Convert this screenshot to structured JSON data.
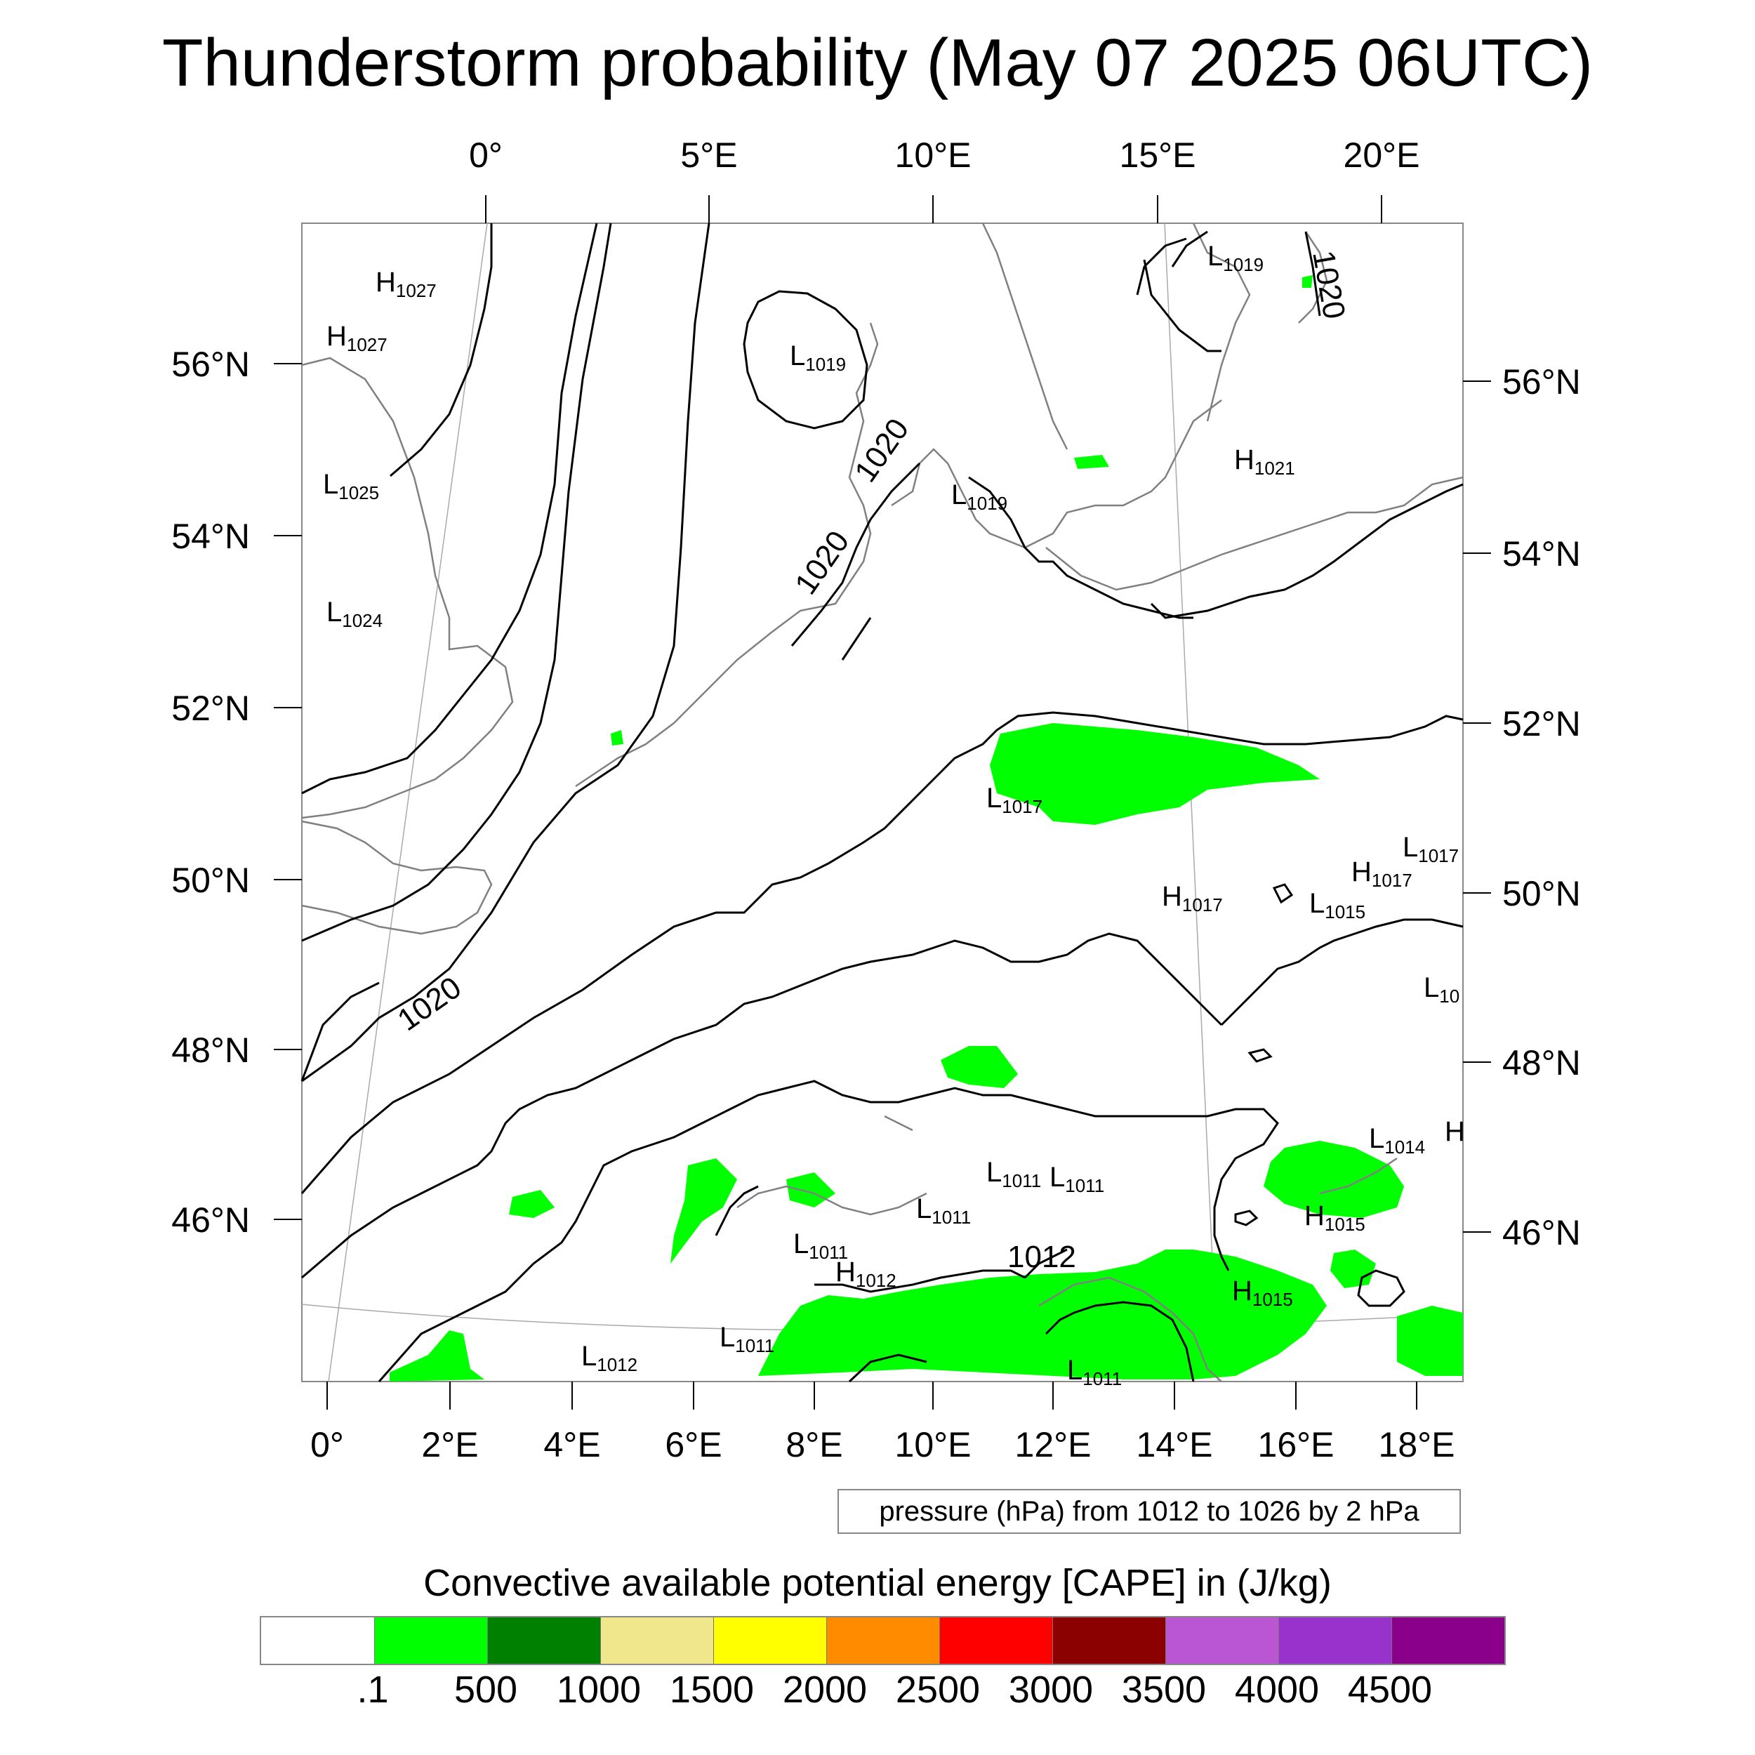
{
  "title": "Thunderstorm probability (May 07 2025 06UTC)",
  "top_lon_labels": [
    "0°",
    "5°E",
    "10°E",
    "15°E",
    "20°E"
  ],
  "bottom_lon_labels": [
    "0°",
    "2°E",
    "4°E",
    "6°E",
    "8°E",
    "10°E",
    "12°E",
    "14°E",
    "16°E",
    "18°E"
  ],
  "left_lat_labels": [
    "56°N",
    "54°N",
    "52°N",
    "50°N",
    "48°N",
    "46°N"
  ],
  "right_lat_labels": [
    "56°N",
    "54°N",
    "52°N",
    "50°N",
    "48°N",
    "46°N"
  ],
  "contour_labels": [
    "1020",
    "1020",
    "1020",
    "1020",
    "1012"
  ],
  "pressure_centers": [
    {
      "type": "H",
      "value": "1027"
    },
    {
      "type": "H",
      "value": "1027"
    },
    {
      "type": "L",
      "value": "1025"
    },
    {
      "type": "L",
      "value": "1024"
    },
    {
      "type": "L",
      "value": "1019"
    },
    {
      "type": "L",
      "value": "1019"
    },
    {
      "type": "L",
      "value": "1019"
    },
    {
      "type": "H",
      "value": "1021"
    },
    {
      "type": "L",
      "value": "1017"
    },
    {
      "type": "H",
      "value": "1017"
    },
    {
      "type": "L",
      "value": "1015"
    },
    {
      "type": "H",
      "value": "1017"
    },
    {
      "type": "L",
      "value": "1017"
    },
    {
      "type": "L",
      "value": "10"
    },
    {
      "type": "L",
      "value": "1014"
    },
    {
      "type": "H",
      "value": "1015"
    },
    {
      "type": "H",
      "value": "1015"
    },
    {
      "type": "L",
      "value": "1011"
    },
    {
      "type": "L",
      "value": "1011"
    },
    {
      "type": "L",
      "value": "1011"
    },
    {
      "type": "L",
      "value": "1011"
    },
    {
      "type": "H",
      "value": "1012"
    },
    {
      "type": "L",
      "value": "1011"
    },
    {
      "type": "L",
      "value": "1012"
    },
    {
      "type": "L",
      "value": "1011"
    },
    {
      "type": "H",
      "value": ""
    }
  ],
  "info_box": "pressure (hPa) from 1012 to 1026 by 2 hPa",
  "colorbar": {
    "title": "Convective available potential energy [CAPE] in (J/kg)",
    "colors": [
      "#ffffff",
      "#00ff00",
      "#008000",
      "#f0e68c",
      "#ffff00",
      "#ff8c00",
      "#ff0000",
      "#8b0000",
      "#ba55d3",
      "#9932cc",
      "#8b008b"
    ],
    "labels": [
      ".1",
      "500",
      "1000",
      "1500",
      "2000",
      "2500",
      "3000",
      "3500",
      "4000",
      "4500"
    ]
  },
  "colors": {
    "cape_green": "#00ff00",
    "coast": "#808080",
    "contour": "#000000"
  }
}
